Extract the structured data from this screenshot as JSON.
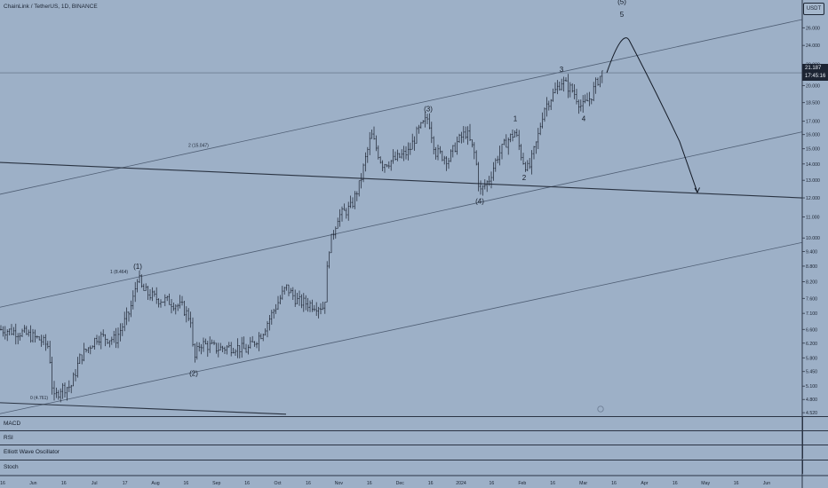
{
  "header": {
    "title": "ChainLink / TetherUS, 1D, BINANCE",
    "currency": "USDT"
  },
  "price_tag": {
    "price": "21.187",
    "countdown": "17:45:16"
  },
  "indicators": [
    {
      "label": "MACD"
    },
    {
      "label": "RSI"
    },
    {
      "label": "Elliott Wave Oscillator"
    },
    {
      "label": "Stoch"
    }
  ],
  "colors": {
    "background": "#9db0c7",
    "candles": "#1b2230",
    "lines": "#2a3342",
    "channel": "#4f5e74"
  },
  "chart_data": {
    "type": "line",
    "title": "ChainLink / TetherUS, 1D, BINANCE",
    "y_scale": "log",
    "ylim": [
      4.45,
      29.5
    ],
    "y_ticks": [
      "26.000",
      "24.000",
      "22.000",
      "20.000",
      "18.500",
      "17.000",
      "16.000",
      "15.000",
      "14.000",
      "13.000",
      "12.000",
      "11.000",
      "10.000",
      "9.400",
      "8.800",
      "8.200",
      "7.600",
      "7.100",
      "6.600",
      "6.200",
      "5.800",
      "5.450",
      "5.100",
      "4.800",
      "4.520"
    ],
    "x_ticks": [
      "16",
      "Jun",
      "16",
      "Jul",
      "17",
      "Aug",
      "16",
      "Sep",
      "16",
      "Oct",
      "16",
      "Nov",
      "16",
      "Dec",
      "16",
      "2024",
      "16",
      "Feb",
      "16",
      "Mar",
      "16",
      "Apr",
      "16",
      "May",
      "16",
      "Jun"
    ],
    "last_price": 21.187,
    "price_path": [
      [
        0,
        6.6
      ],
      [
        25,
        6.5
      ],
      [
        45,
        6.3
      ],
      [
        55,
        6.1
      ],
      [
        60,
        4.78
      ],
      [
        68,
        5.05
      ],
      [
        80,
        5.1
      ],
      [
        90,
        5.8
      ],
      [
        110,
        6.4
      ],
      [
        130,
        6.3
      ],
      [
        145,
        7.1
      ],
      [
        150,
        7.6
      ],
      [
        155,
        8.45
      ],
      [
        160,
        7.9
      ],
      [
        175,
        7.6
      ],
      [
        190,
        7.5
      ],
      [
        205,
        7.3
      ],
      [
        215,
        6.9
      ],
      [
        218,
        5.7
      ],
      [
        225,
        6.2
      ],
      [
        245,
        6.05
      ],
      [
        265,
        6.1
      ],
      [
        278,
        6.0
      ],
      [
        295,
        6.5
      ],
      [
        310,
        7.3
      ],
      [
        322,
        8.0
      ],
      [
        335,
        7.5
      ],
      [
        350,
        7.4
      ],
      [
        365,
        7.3
      ],
      [
        370,
        9.5
      ],
      [
        380,
        11.0
      ],
      [
        395,
        11.5
      ],
      [
        405,
        12.8
      ],
      [
        410,
        14.0
      ],
      [
        418,
        16.0
      ],
      [
        430,
        14.0
      ],
      [
        445,
        14.3
      ],
      [
        460,
        14.8
      ],
      [
        470,
        16.2
      ],
      [
        482,
        17.3
      ],
      [
        490,
        14.8
      ],
      [
        505,
        14.3
      ],
      [
        515,
        15.5
      ],
      [
        525,
        16.2
      ],
      [
        535,
        14.5
      ],
      [
        540,
        12.3
      ],
      [
        550,
        13.0
      ],
      [
        560,
        14.5
      ],
      [
        570,
        15.5
      ],
      [
        580,
        16.2
      ],
      [
        588,
        14.3
      ],
      [
        595,
        13.6
      ],
      [
        605,
        15.7
      ],
      [
        612,
        18.0
      ],
      [
        625,
        19.5
      ],
      [
        632,
        20.4
      ],
      [
        645,
        19.5
      ],
      [
        655,
        18.1
      ],
      [
        665,
        19.0
      ],
      [
        672,
        20.4
      ],
      [
        678,
        21.2
      ]
    ],
    "wave_labels": [
      {
        "text": "(1)",
        "x": 155,
        "price": 8.7
      },
      {
        "text": "(2)",
        "x": 218,
        "price": 5.35
      },
      {
        "text": "(3)",
        "x": 482,
        "price": 17.8
      },
      {
        "text": "(4)",
        "x": 540,
        "price": 11.7
      },
      {
        "text": "(5)",
        "x": 700,
        "price": 29.0
      },
      {
        "text": "5",
        "x": 700,
        "price": 27.3
      },
      {
        "text": "1",
        "x": 580,
        "price": 17.0
      },
      {
        "text": "2",
        "x": 590,
        "price": 13.0
      },
      {
        "text": "3",
        "x": 632,
        "price": 21.3
      },
      {
        "text": "4",
        "x": 657,
        "price": 17.0
      }
    ],
    "fib_labels": [
      {
        "text": "0 (4.761)",
        "x": 34,
        "price": 4.78
      },
      {
        "text": "1 (8.464)",
        "x": 124,
        "price": 8.46
      },
      {
        "text": "2 (15.047)",
        "x": 212,
        "price": 15.05
      }
    ],
    "projection_path": [
      [
        683,
        21.2
      ],
      [
        700,
        24.6
      ],
      [
        735,
        20.0
      ],
      [
        765,
        15.5
      ],
      [
        785,
        12.3
      ]
    ],
    "channel_lines": [
      {
        "name": "upper",
        "x1": 0,
        "p1": 12.2,
        "x2": 903,
        "p2": 27.0
      },
      {
        "name": "middle",
        "x1": 0,
        "p1": 7.3,
        "x2": 903,
        "p2": 16.2
      },
      {
        "name": "lower",
        "x1": 0,
        "p1": 4.5,
        "x2": 903,
        "p2": 9.8
      }
    ],
    "trend_lines": [
      {
        "name": "horizontal-trend",
        "x1": 0,
        "p1": 14.1,
        "x2": 903,
        "p2": 12.0
      },
      {
        "name": "base-line",
        "x1": 0,
        "p1": 4.73,
        "x2": 322,
        "p2": 4.49
      }
    ]
  }
}
